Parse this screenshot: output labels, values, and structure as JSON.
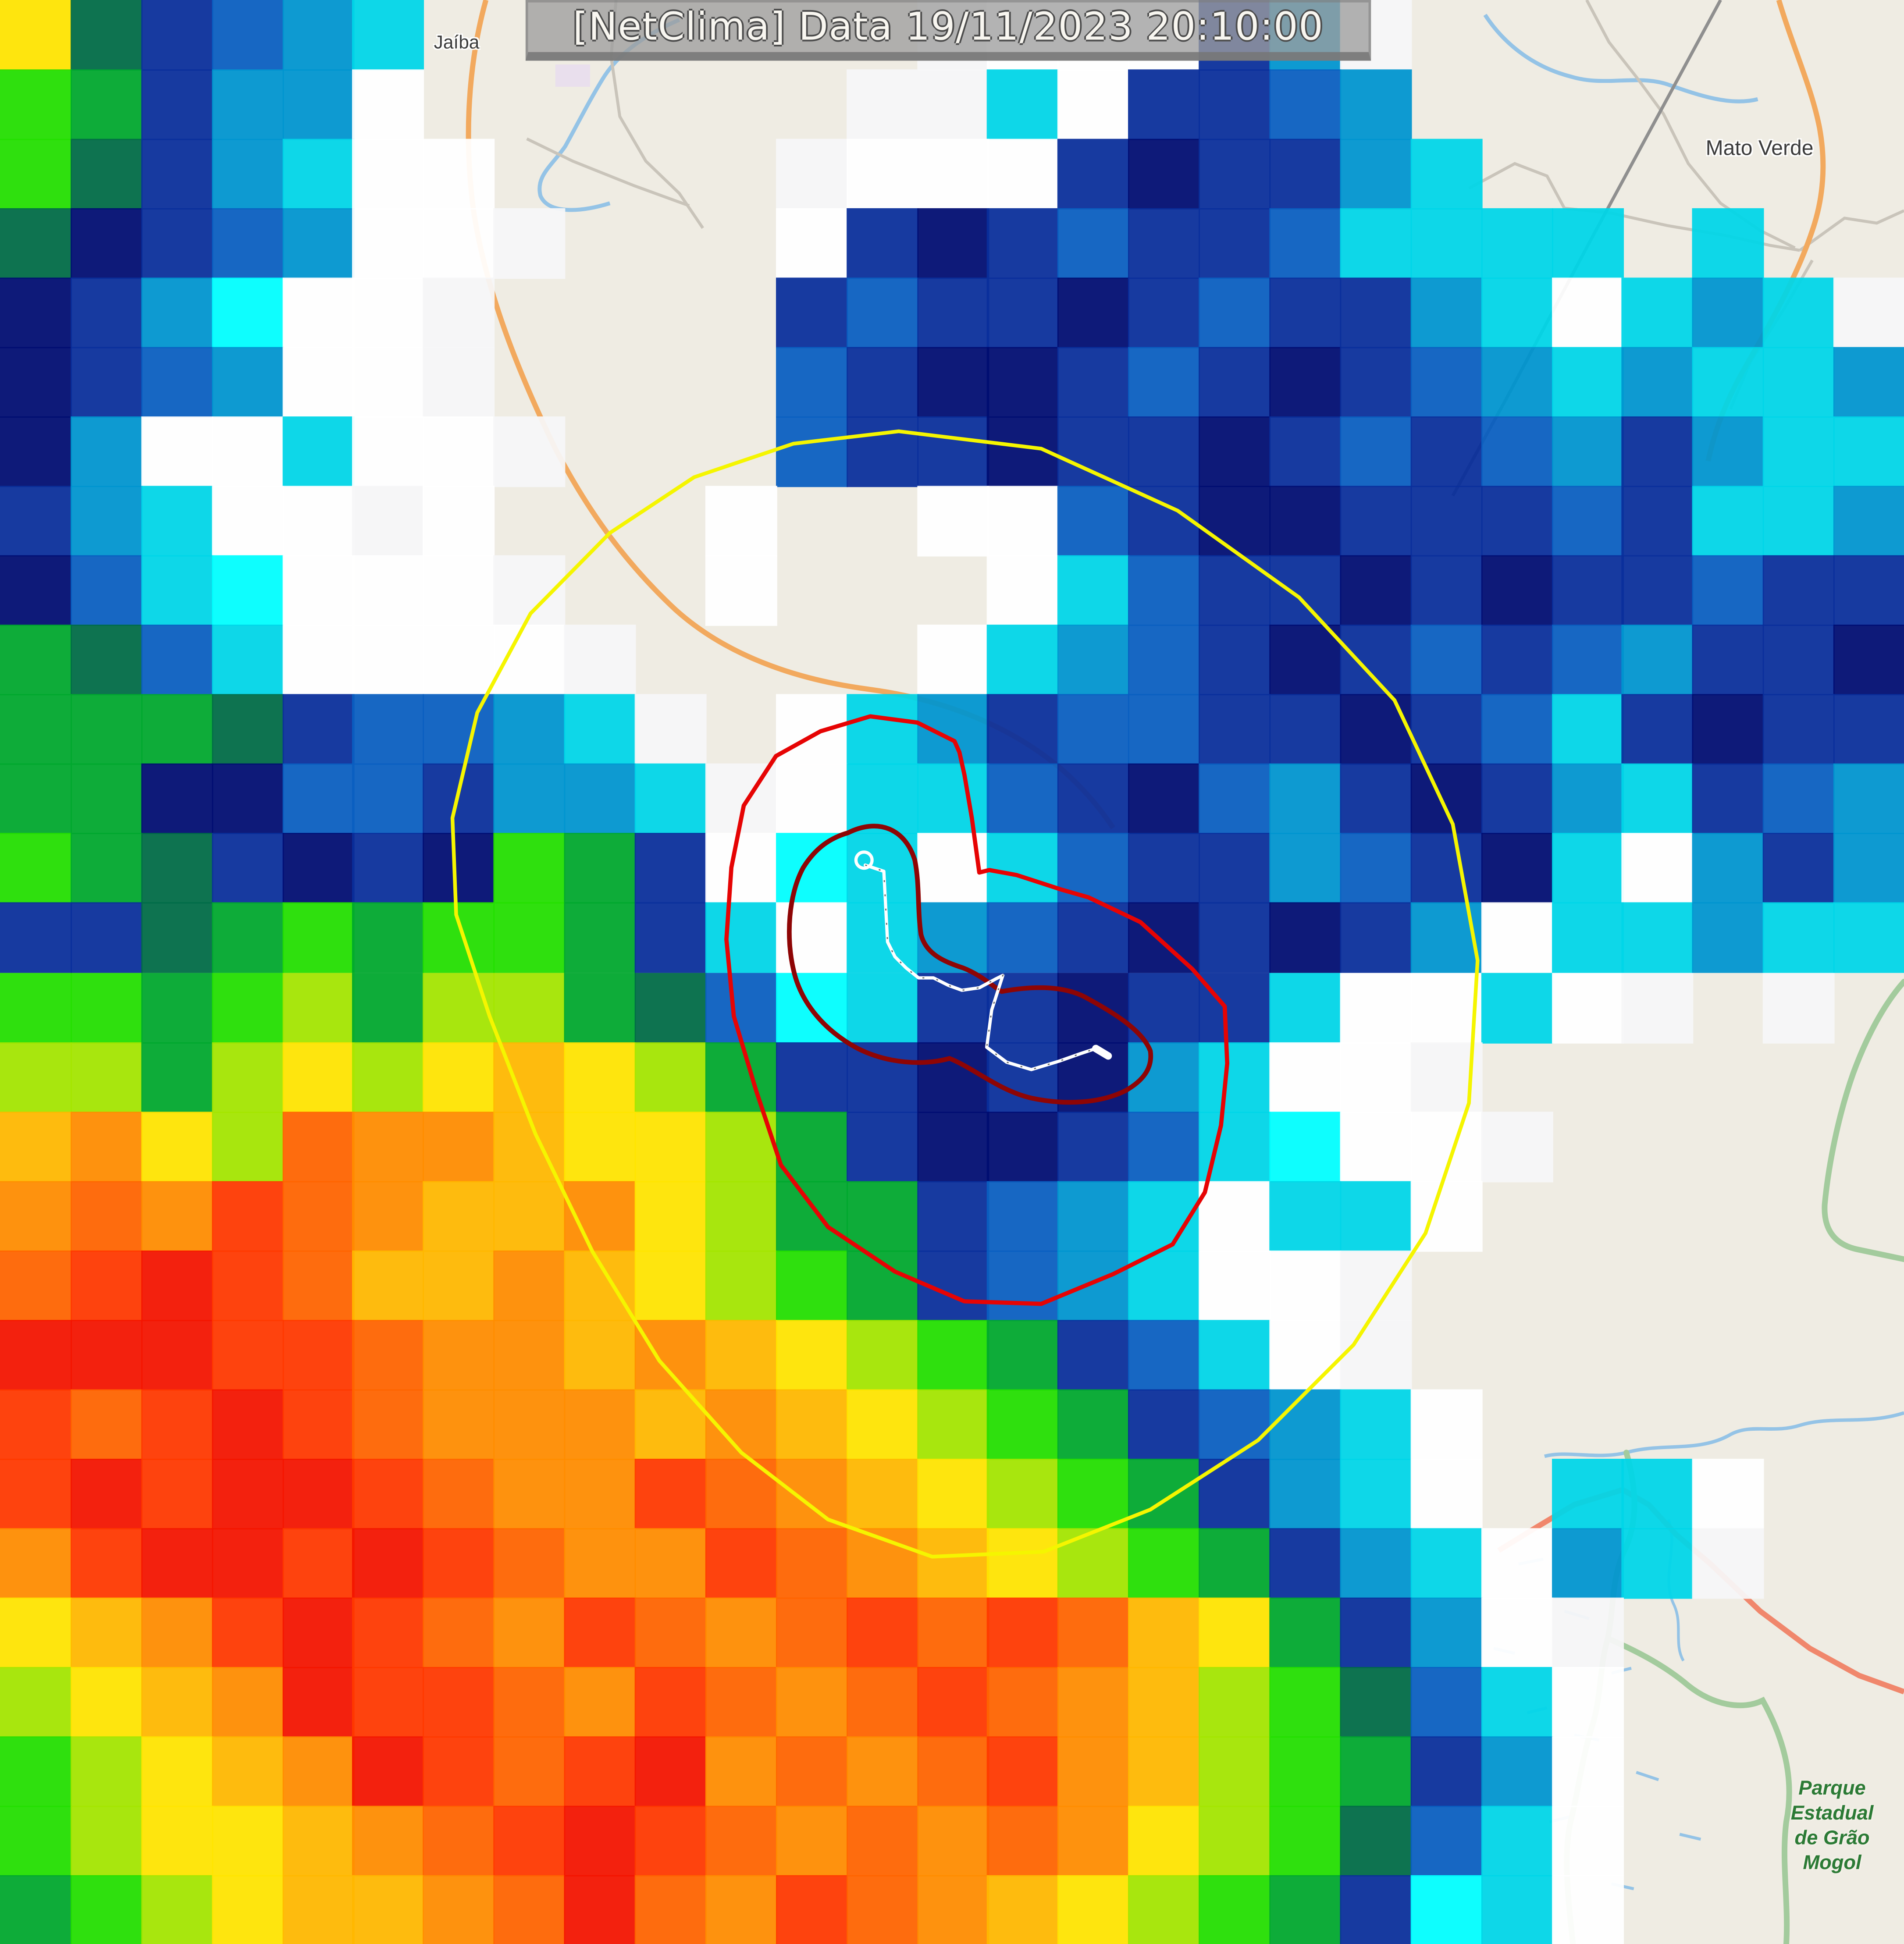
{
  "title_bar": {
    "text": "[NetClima] Data 19/11/2023 20:10:00"
  },
  "map": {
    "city_labels": [
      {
        "id": "jaiba",
        "text": "Jaíba"
      },
      {
        "id": "mato-verde",
        "text": "Mato Verde"
      }
    ],
    "park_label_lines": [
      "Parque",
      "Estadual",
      "de Grão",
      "Mogol"
    ]
  },
  "colors": {
    "map-bg": "#efece3",
    "road-orange": "#f2a95e",
    "road-salmon": "#f0876c",
    "road-gray": "#c9c4ba",
    "road-dark": "#8f8f8f",
    "river": "#94c3e6",
    "park-line": "#a3cb9d",
    "park-text": "#2b7a35",
    "city-text": "#3b3b3b",
    "titlebar-bg": "rgba(158,158,158,0.78)",
    "titlebar-edge": "rgba(118,118,118,0.85)",
    "titlebar-text": "#f8f6f0",
    "contour-outer": "#f5f500",
    "contour-mid": "#e60404",
    "contour-inner": "#8e0505",
    "track": "#ffffff"
  },
  "radar": {
    "palette": {
      ".": "",
      "w": "#f6f6f8",
      "W": "#ffffff",
      "C": "#00ffff",
      "c": "#00d6e8",
      "b": "#0095cf",
      "B": "#0a5fc0",
      "N": "#0a2f9b",
      "D": "#000d72",
      "T": "#006b46",
      "g": "#00a82e",
      "G": "#23df00",
      "y": "#a4e600",
      "Y": "#ffe400",
      "A": "#ffb800",
      "o": "#ff8c00",
      "O": "#ff6400",
      "r": "#ff3800",
      "R": "#f31400",
      "M": "#ce0000"
    },
    "rows": [
      "YTNBbc.......wWWWNbw.......",
      "GgNbbW......wwcWNNBb.......",
      "GTNbcWW....wWWWNDNNbc......",
      "TDNBbWWw...WNDNBNNBcccc.c..",
      "DNbCWWw....NBNNDNBNNbcWcbcw",
      "DNBbWWw....BNDDNBNDNBbcbccb",
      "DbWWcWWw...BNNDNNDNBNBbNbcc",
      "NbcWWwW...W..WWBNDDNNNBNccb",
      "DBcCWWWw..W...WcBNNDNDNNBNN",
      "gTBcWWWWw....WcbBNDNBNBbNND",
      "gggTNBBbcw.WcbNBBNNDNBcNDNN",
      "ggDDBBNbbcwWccBNDBbNDNbcNBb",
      "GgTNDNDGgNWCcWcBNNbBNDcWbNb",
      "NNTgGgGGgNcWcbBNDNDNbWccbcc",
      "GGgGygyygTBCcNNDNNcWWcWw.w.",
      "yygyYyYAYygNNDNDbcWWw......",
      "AoYyOooAYYygNDDNBcCWWw.....",
      "oOorOoAAoYyggNBbcWccW......",
      "OrRrOAAoAYyGgNBbcWWw.......",
      "RRRrrOooAoAYyGgNBcWw.......",
      "rOrRrOoooAoAYyGgNBbcW......",
      "rRrRRrOoorOoAYyGgNbcW.ccW..",
      "orRRrRrOoorOoAYyGgNbcWbcw..",
      "YAorRrOorOoOrOrOAYgNbWw....",
      "yYAoRrrOorOoOrOoAyGTBcW....",
      "GyYAoRrOrRoOoOroAyGgNbW....",
      "GyYYAoOrRrOoOoOoYyGTBcW....",
      "gGyYAAoOROorOoAYyGgNCcW...."
    ]
  }
}
